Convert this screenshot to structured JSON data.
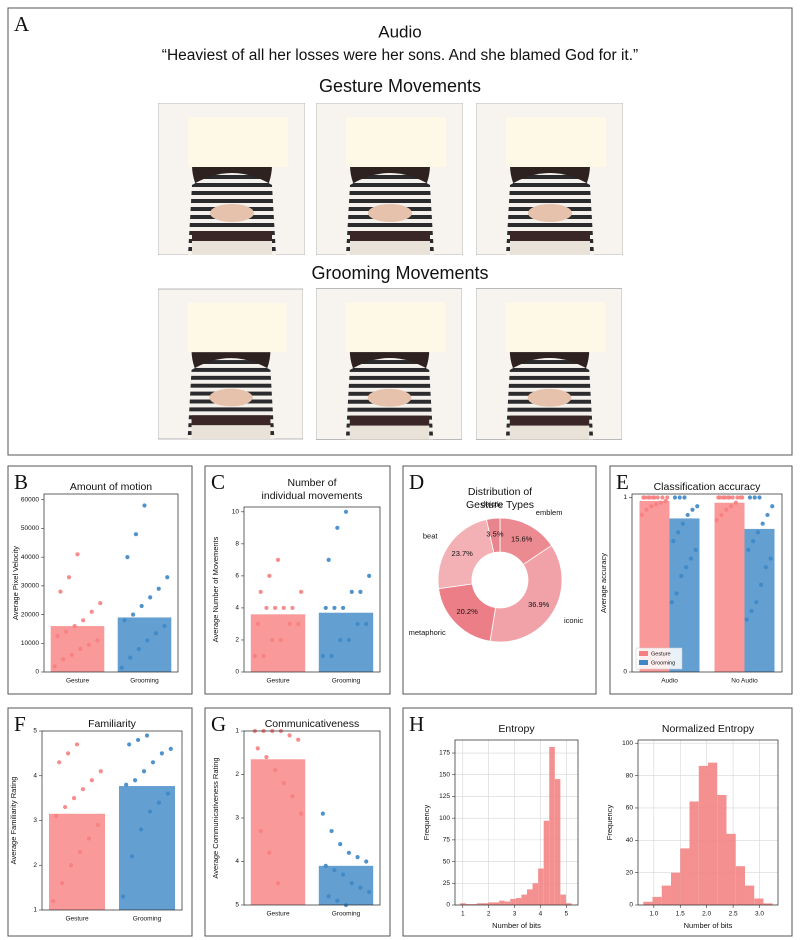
{
  "figure": {
    "panel_A": {
      "label": "A",
      "audio_heading": "Audio",
      "quote": "“Heaviest of all her losses were her sons. And she blamed God for it.”",
      "gesture_heading": "Gesture Movements",
      "grooming_heading": "Grooming Movements"
    }
  },
  "chart_data": [
    {
      "type": "bar",
      "panel": "B",
      "title": "Amount of motion",
      "ylabel": "Average Pixel Velocity",
      "categories": [
        "Gesture",
        "Grooming"
      ],
      "values": [
        16000,
        19000
      ],
      "colors": [
        "#f77f7f",
        "#3d87c6"
      ],
      "points": [
        [
          2000,
          4500,
          6000,
          8000,
          9500,
          11000,
          12500,
          14000,
          16000,
          18000,
          21000,
          24000,
          28000,
          33000,
          41000
        ],
        [
          1500,
          5000,
          8000,
          11000,
          13500,
          16000,
          18000,
          20000,
          23000,
          26000,
          29000,
          33000,
          40000,
          48000,
          58000
        ]
      ],
      "ylim": [
        0,
        62000
      ],
      "yticks": [
        0,
        10000,
        20000,
        30000,
        40000,
        50000,
        60000
      ]
    },
    {
      "type": "bar",
      "panel": "C",
      "title": [
        "Number of",
        "individual movements"
      ],
      "ylabel": "Average Number of Movements",
      "categories": [
        "Gesture",
        "Grooming"
      ],
      "values": [
        3.6,
        3.7
      ],
      "colors": [
        "#f77f7f",
        "#3d87c6"
      ],
      "points": [
        [
          1,
          1,
          2,
          2,
          3,
          3,
          3,
          4,
          4,
          4,
          4,
          5,
          5,
          6,
          7
        ],
        [
          1,
          1,
          2,
          2,
          3,
          3,
          4,
          4,
          4,
          5,
          5,
          6,
          7,
          9,
          10
        ]
      ],
      "ylim": [
        0,
        10.3
      ],
      "yticks": [
        0,
        2,
        4,
        6,
        8,
        10
      ]
    },
    {
      "type": "donut",
      "panel": "D",
      "title": [
        "Distribution of",
        "Gesture Types"
      ],
      "categories": [
        "emblem",
        "iconic",
        "metaphoric",
        "beat",
        "deictic"
      ],
      "values": [
        15.6,
        36.9,
        20.2,
        23.7,
        3.5
      ],
      "value_labels": [
        "15.6%",
        "36.9%",
        "20.2%",
        "23.7%",
        "3.5%"
      ],
      "colors": [
        "#ec8a92",
        "#f0a2a8",
        "#ec7e87",
        "#f3b1b5",
        "#e8848c"
      ]
    },
    {
      "type": "bar",
      "panel": "E",
      "title": "Classification accuracy",
      "ylabel": "Average accuracy",
      "categories": [
        "Audio",
        "No Audio"
      ],
      "series": [
        {
          "name": "Gesture",
          "color": "#f77f7f",
          "values": [
            0.98,
            0.97
          ],
          "points": [
            [
              0.9,
              0.93,
              0.95,
              0.96,
              0.97,
              0.98,
              1,
              1,
              1,
              1,
              1,
              1,
              1,
              1,
              1
            ],
            [
              0.87,
              0.9,
              0.93,
              0.95,
              0.97,
              1,
              1,
              1,
              1,
              1,
              1,
              1,
              1,
              1,
              1
            ]
          ]
        },
        {
          "name": "Grooming",
          "color": "#3d87c6",
          "values": [
            0.88,
            0.82
          ],
          "points": [
            [
              0.4,
              0.45,
              0.55,
              0.6,
              0.65,
              0.7,
              0.75,
              0.8,
              0.85,
              0.9,
              0.93,
              0.95,
              1,
              1,
              1
            ],
            [
              0.3,
              0.35,
              0.4,
              0.5,
              0.6,
              0.65,
              0.7,
              0.75,
              0.8,
              0.85,
              0.9,
              0.95,
              1,
              1,
              1
            ]
          ]
        }
      ],
      "legend": "lower left",
      "ylim": [
        0,
        1.02
      ],
      "yticks": [
        0,
        1
      ]
    },
    {
      "type": "bar",
      "panel": "F",
      "title": "Familiarity",
      "ylabel": "Average Familiarity Rating",
      "categories": [
        "Gesture",
        "Grooming"
      ],
      "values": [
        3.15,
        3.77
      ],
      "colors": [
        "#f77f7f",
        "#3d87c6"
      ],
      "points": [
        [
          1.2,
          1.6,
          2,
          2.3,
          2.6,
          2.9,
          3.1,
          3.3,
          3.5,
          3.7,
          3.9,
          4.1,
          4.3,
          4.5,
          4.7
        ],
        [
          1.3,
          2.2,
          2.8,
          3.2,
          3.4,
          3.6,
          3.8,
          3.9,
          4.1,
          4.3,
          4.5,
          4.6,
          4.7,
          4.8,
          4.9
        ]
      ],
      "ylim": [
        1,
        5
      ],
      "yticks": [
        1,
        2,
        3,
        4,
        5
      ]
    },
    {
      "type": "bar",
      "panel": "G",
      "title": "Communicativeness",
      "ylabel": "Average Communicativeness Rating",
      "categories": [
        "Gesture",
        "Grooming"
      ],
      "values": [
        1.65,
        4.1
      ],
      "colors": [
        "#f77f7f",
        "#3d87c6"
      ],
      "points": [
        [
          1,
          1,
          1,
          1,
          1.1,
          1.2,
          1.4,
          1.6,
          1.9,
          2.2,
          2.5,
          2.9,
          3.3,
          3.8,
          4.5
        ],
        [
          2.9,
          3.3,
          3.6,
          3.8,
          3.9,
          4,
          4.1,
          4.2,
          4.3,
          4.5,
          4.6,
          4.7,
          4.8,
          4.9,
          5
        ]
      ],
      "ylim": [
        5,
        1
      ],
      "yticks": [
        1,
        2,
        3,
        4,
        5
      ]
    },
    {
      "type": "histogram",
      "panel": "H",
      "title": "Entropy",
      "xlabel": "Number of bits",
      "ylabel": "Frequency",
      "bins": [
        0.9,
        1.115,
        1.33,
        1.545,
        1.76,
        1.975,
        2.19,
        2.405,
        2.62,
        2.835,
        3.05,
        3.265,
        3.48,
        3.695,
        3.91,
        4.125,
        4.34,
        4.555,
        4.77,
        4.985,
        5.2
      ],
      "values": [
        2,
        1,
        1,
        2,
        2,
        3,
        3,
        5,
        4,
        7,
        8,
        12,
        18,
        25,
        42,
        97,
        182,
        145,
        12,
        2
      ],
      "color": "#f38484",
      "grid": true,
      "xlim": [
        0.7,
        5.45
      ],
      "xticks": [
        1,
        2,
        3,
        4,
        5
      ],
      "ylim": [
        0,
        190
      ],
      "yticks": [
        0,
        25,
        50,
        75,
        100,
        125,
        150,
        175
      ]
    },
    {
      "type": "histogram",
      "title": "Normalized Entropy",
      "xlabel": "Number of bits",
      "ylabel": "Frequency",
      "bins": [
        0.8,
        0.975,
        1.15,
        1.325,
        1.5,
        1.675,
        1.85,
        2.025,
        2.2,
        2.375,
        2.55,
        2.725,
        2.9,
        3.075,
        3.25
      ],
      "values": [
        2,
        5,
        12,
        20,
        35,
        64,
        86,
        88,
        68,
        44,
        24,
        12,
        4,
        1
      ],
      "color": "#f38484",
      "grid": true,
      "xlim": [
        0.7,
        3.35
      ],
      "xticks": [
        {
          "value": 1,
          "label": "1.0"
        },
        {
          "value": 1.5,
          "label": "1.5"
        },
        {
          "value": 2,
          "label": "2.0"
        },
        {
          "value": 2.5,
          "label": "2.5"
        },
        {
          "value": 3,
          "label": "3.0"
        }
      ],
      "ylim": [
        0,
        102
      ],
      "yticks": [
        0,
        20,
        40,
        60,
        80,
        100
      ]
    }
  ]
}
